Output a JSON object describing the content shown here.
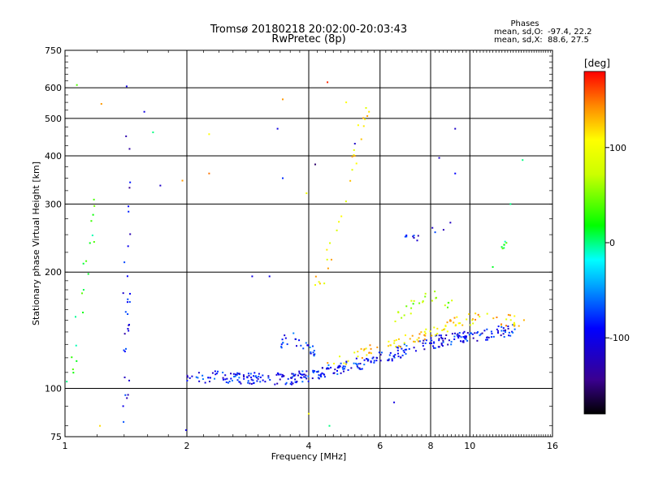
{
  "chart_data": {
    "type": "scatter",
    "title": "Tromsø 20180218 20:02:00-20:03:43",
    "subtitle": "RwPretec (8p)",
    "xlabel": "Frequency [MHz]",
    "ylabel": "Stationary phase Virtual Height [km]",
    "xscale": "log",
    "yscale": "log",
    "xlim": [
      1,
      16
    ],
    "ylim": [
      75,
      750
    ],
    "xticks": [
      1,
      2,
      4,
      6,
      8,
      10,
      16
    ],
    "yticks": [
      75,
      100,
      200,
      300,
      400,
      500,
      600,
      750
    ],
    "grid": true,
    "stats": {
      "heading": "Phases",
      "o_label": "mean, sd,O:",
      "o_values": "-97.4, 22.2",
      "x_label": "mean, sd,X:",
      "x_values": "88.6, 27.5"
    },
    "colorbar": {
      "label": "[deg]",
      "min": -180,
      "max": 180,
      "ticks": [
        -100,
        0,
        100
      ],
      "placement": "right"
    },
    "clusters": [
      {
        "x": [
          2.0,
          2.2,
          2.4,
          2.6,
          2.8,
          3.0,
          3.2,
          3.4,
          3.6,
          3.8,
          4.0,
          4.3,
          4.6,
          4.9,
          5.2,
          5.5,
          6.0
        ],
        "y": [
          108,
          107,
          107,
          106,
          106,
          106,
          106,
          106,
          106,
          107,
          108,
          110,
          112,
          113,
          115,
          117,
          119
        ],
        "phase": -100,
        "count": 210
      },
      {
        "x": [
          6.0,
          6.5,
          7.0,
          7.5,
          8.0,
          8.5,
          9.0,
          9.5,
          10.0,
          11.0,
          12.0,
          13.0
        ],
        "y": [
          120,
          123,
          126,
          129,
          131,
          133,
          134,
          135,
          136,
          138,
          140,
          142
        ],
        "phase": -100,
        "count": 150
      },
      {
        "x": [
          4.4,
          5.0,
          5.6,
          6.2,
          6.8,
          7.4,
          8.0,
          8.8,
          9.6,
          10.5,
          11.5,
          12.5,
          13.5
        ],
        "y": [
          115,
          120,
          125,
          128,
          132,
          136,
          140,
          145,
          150,
          152,
          150,
          150,
          148
        ],
        "phase": 120,
        "count": 100
      },
      {
        "x": [
          6.5,
          7.0,
          7.5,
          8.0,
          8.5,
          9.0
        ],
        "y": [
          150,
          160,
          170,
          175,
          170,
          165
        ],
        "phase": 60,
        "count": 25
      },
      {
        "x": [
          3.3,
          3.6,
          3.9,
          4.2
        ],
        "y": [
          130,
          135,
          128,
          125
        ],
        "phase": -90,
        "count": 30
      },
      {
        "x": [
          1.42,
          1.42,
          1.42,
          1.42,
          1.42,
          1.42,
          1.42,
          1.42,
          1.42,
          1.42,
          1.42
        ],
        "y": [
          80,
          100,
          120,
          130,
          150,
          170,
          210,
          280,
          370,
          480,
          600
        ],
        "phase": -110,
        "count": 32
      },
      {
        "x": [
          1.02,
          1.06,
          1.1,
          1.15,
          1.2
        ],
        "y": [
          95,
          125,
          170,
          230,
          320
        ],
        "phase": 20,
        "count": 20
      },
      {
        "x": [
          4.1,
          4.4,
          4.7,
          5.0,
          5.3,
          5.6
        ],
        "y": [
          180,
          200,
          260,
          330,
          420,
          540
        ],
        "phase": 110,
        "count": 28
      },
      {
        "x": [
          6.7,
          7.5,
          8.3,
          9.0
        ],
        "y": [
          245,
          250,
          255,
          260
        ],
        "phase": -110,
        "count": 12
      },
      {
        "x": [
          11.2,
          11.6,
          12.0,
          12.4
        ],
        "y": [
          200,
          210,
          225,
          240
        ],
        "phase": 20,
        "count": 8
      }
    ],
    "outliers": [
      {
        "x": 1.07,
        "y": 610,
        "phase": 40
      },
      {
        "x": 1.23,
        "y": 545,
        "phase": 140
      },
      {
        "x": 1.42,
        "y": 605,
        "phase": -110
      },
      {
        "x": 1.57,
        "y": 520,
        "phase": -110
      },
      {
        "x": 1.65,
        "y": 460,
        "phase": 0
      },
      {
        "x": 1.72,
        "y": 335,
        "phase": -120
      },
      {
        "x": 1.95,
        "y": 345,
        "phase": 140
      },
      {
        "x": 2.27,
        "y": 455,
        "phase": 110
      },
      {
        "x": 2.27,
        "y": 360,
        "phase": 150
      },
      {
        "x": 3.35,
        "y": 470,
        "phase": -110
      },
      {
        "x": 3.45,
        "y": 560,
        "phase": 140
      },
      {
        "x": 3.45,
        "y": 350,
        "phase": -90
      },
      {
        "x": 3.95,
        "y": 320,
        "phase": 100
      },
      {
        "x": 4.15,
        "y": 380,
        "phase": -150
      },
      {
        "x": 4.45,
        "y": 620,
        "phase": 170
      },
      {
        "x": 4.95,
        "y": 550,
        "phase": 110
      },
      {
        "x": 5.2,
        "y": 430,
        "phase": -120
      },
      {
        "x": 5.3,
        "y": 480,
        "phase": 110
      },
      {
        "x": 8.4,
        "y": 395,
        "phase": -120
      },
      {
        "x": 9.2,
        "y": 470,
        "phase": -120
      },
      {
        "x": 9.2,
        "y": 360,
        "phase": -100
      },
      {
        "x": 12.6,
        "y": 300,
        "phase": 0
      },
      {
        "x": 6.5,
        "y": 92,
        "phase": -110
      },
      {
        "x": 4.0,
        "y": 86,
        "phase": 110
      },
      {
        "x": 4.5,
        "y": 80,
        "phase": 0
      },
      {
        "x": 1.99,
        "y": 78,
        "phase": -110
      },
      {
        "x": 1.22,
        "y": 80,
        "phase": 120
      },
      {
        "x": 2.9,
        "y": 195,
        "phase": -110
      },
      {
        "x": 3.2,
        "y": 195,
        "phase": -110
      },
      {
        "x": 13.5,
        "y": 390,
        "phase": 0
      }
    ]
  }
}
